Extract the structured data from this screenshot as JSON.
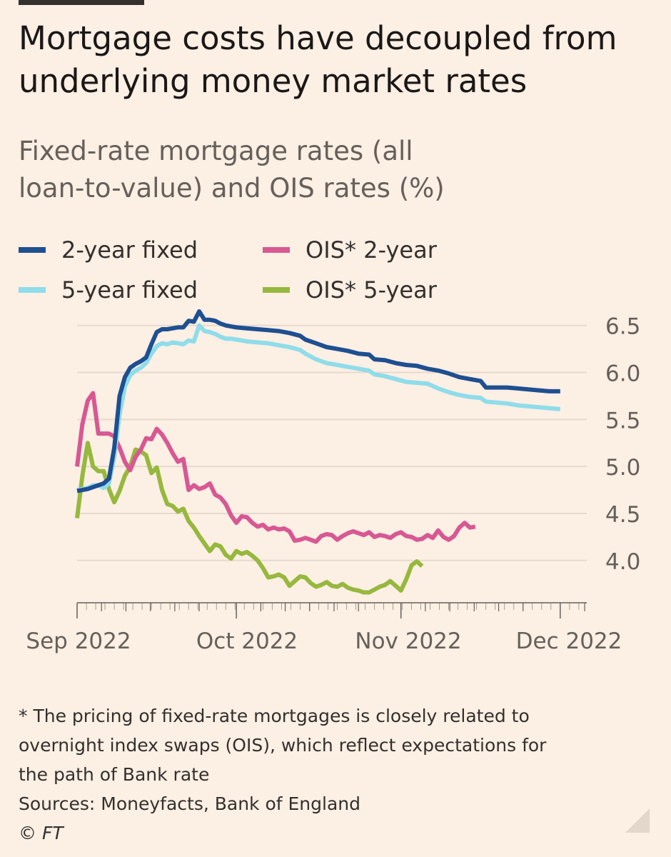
{
  "header": {
    "title_line1": "Mortgage costs have decoupled from",
    "title_line2": "underlying money market rates",
    "subtitle_line1": "Fixed-rate mortgage rates (all",
    "subtitle_line2": "loan-to-value) and OIS rates (%)"
  },
  "footer": {
    "note_line1": "* The pricing of fixed-rate mortgages is closely related to",
    "note_line2": "overnight index swaps (OIS), which reflect expectations for",
    "note_line3": "the path of Bank rate",
    "sources": "Sources: Moneyfacts, Bank of England",
    "credit": "© FT"
  },
  "colors": {
    "background": "#fcefe3",
    "grid": "#e6d9ce",
    "axis": "#66605c"
  },
  "chart_data": {
    "type": "line",
    "title": "Mortgage costs have decoupled from underlying money market rates",
    "subtitle": "Fixed-rate mortgage rates (all loan-to-value) and OIS rates (%)",
    "x_ticks": [
      {
        "label": "Sep 2022",
        "day": 0
      },
      {
        "label": "Oct 2022",
        "day": 30
      },
      {
        "label": "Nov 2022",
        "day": 61
      },
      {
        "label": "Dec 2022",
        "day": 91
      }
    ],
    "x_range": [
      0,
      96
    ],
    "ylim": [
      3.55,
      6.65
    ],
    "y_ticks": [
      4.0,
      4.5,
      5.0,
      5.5,
      6.0,
      6.5
    ],
    "y_tick_labels": [
      "4.0",
      "4.5",
      "5.0",
      "5.5",
      "6.0",
      "6.5"
    ],
    "y_axis_side": "right",
    "grid": true,
    "legend_position": "top-left",
    "series": [
      {
        "name": "2-year fixed",
        "color": "#1e4f91",
        "points": [
          [
            0,
            4.74
          ],
          [
            1,
            4.75
          ],
          [
            2,
            4.76
          ],
          [
            3,
            4.78
          ],
          [
            4,
            4.8
          ],
          [
            5,
            4.82
          ],
          [
            6,
            4.87
          ],
          [
            7,
            5.2
          ],
          [
            8,
            5.75
          ],
          [
            9,
            5.95
          ],
          [
            10,
            6.05
          ],
          [
            11,
            6.09
          ],
          [
            12,
            6.12
          ],
          [
            13,
            6.16
          ],
          [
            14,
            6.3
          ],
          [
            15,
            6.43
          ],
          [
            16,
            6.46
          ],
          [
            17,
            6.46
          ],
          [
            18,
            6.47
          ],
          [
            19,
            6.48
          ],
          [
            20,
            6.48
          ],
          [
            21,
            6.55
          ],
          [
            22,
            6.54
          ],
          [
            23,
            6.65
          ],
          [
            24,
            6.56
          ],
          [
            25,
            6.56
          ],
          [
            26,
            6.55
          ],
          [
            27,
            6.52
          ],
          [
            28,
            6.5
          ],
          [
            29,
            6.49
          ],
          [
            30,
            6.48
          ],
          [
            32,
            6.47
          ],
          [
            34,
            6.46
          ],
          [
            36,
            6.45
          ],
          [
            38,
            6.44
          ],
          [
            40,
            6.42
          ],
          [
            42,
            6.39
          ],
          [
            43,
            6.35
          ],
          [
            45,
            6.31
          ],
          [
            47,
            6.27
          ],
          [
            49,
            6.25
          ],
          [
            51,
            6.23
          ],
          [
            53,
            6.2
          ],
          [
            55,
            6.19
          ],
          [
            56,
            6.14
          ],
          [
            58,
            6.13
          ],
          [
            60,
            6.1
          ],
          [
            62,
            6.08
          ],
          [
            64,
            6.07
          ],
          [
            66,
            6.04
          ],
          [
            68,
            6.02
          ],
          [
            70,
            5.99
          ],
          [
            72,
            5.95
          ],
          [
            74,
            5.93
          ],
          [
            76,
            5.91
          ],
          [
            77,
            5.84
          ],
          [
            79,
            5.84
          ],
          [
            81,
            5.84
          ],
          [
            83,
            5.83
          ],
          [
            85,
            5.82
          ],
          [
            87,
            5.81
          ],
          [
            89,
            5.8
          ],
          [
            91,
            5.8
          ]
        ]
      },
      {
        "name": "5-year fixed",
        "color": "#8fdcea",
        "points": [
          [
            0,
            4.75
          ],
          [
            1,
            4.76
          ],
          [
            2,
            4.77
          ],
          [
            3,
            4.8
          ],
          [
            4,
            4.8
          ],
          [
            5,
            4.77
          ],
          [
            6,
            4.82
          ],
          [
            7,
            5.1
          ],
          [
            8,
            5.55
          ],
          [
            9,
            5.85
          ],
          [
            10,
            5.97
          ],
          [
            11,
            6.02
          ],
          [
            12,
            6.05
          ],
          [
            13,
            6.1
          ],
          [
            14,
            6.2
          ],
          [
            15,
            6.28
          ],
          [
            16,
            6.31
          ],
          [
            17,
            6.3
          ],
          [
            18,
            6.32
          ],
          [
            19,
            6.31
          ],
          [
            20,
            6.3
          ],
          [
            21,
            6.34
          ],
          [
            22,
            6.33
          ],
          [
            23,
            6.5
          ],
          [
            24,
            6.44
          ],
          [
            25,
            6.43
          ],
          [
            26,
            6.41
          ],
          [
            27,
            6.38
          ],
          [
            28,
            6.36
          ],
          [
            29,
            6.36
          ],
          [
            30,
            6.35
          ],
          [
            32,
            6.33
          ],
          [
            34,
            6.32
          ],
          [
            36,
            6.31
          ],
          [
            38,
            6.29
          ],
          [
            40,
            6.27
          ],
          [
            42,
            6.24
          ],
          [
            43,
            6.2
          ],
          [
            45,
            6.14
          ],
          [
            47,
            6.1
          ],
          [
            49,
            6.08
          ],
          [
            51,
            6.06
          ],
          [
            53,
            6.04
          ],
          [
            55,
            6.02
          ],
          [
            56,
            5.98
          ],
          [
            58,
            5.96
          ],
          [
            60,
            5.93
          ],
          [
            62,
            5.9
          ],
          [
            64,
            5.89
          ],
          [
            66,
            5.88
          ],
          [
            68,
            5.83
          ],
          [
            70,
            5.79
          ],
          [
            72,
            5.76
          ],
          [
            74,
            5.74
          ],
          [
            76,
            5.73
          ],
          [
            77,
            5.69
          ],
          [
            79,
            5.68
          ],
          [
            81,
            5.67
          ],
          [
            83,
            5.65
          ],
          [
            85,
            5.64
          ],
          [
            87,
            5.63
          ],
          [
            89,
            5.62
          ],
          [
            91,
            5.61
          ]
        ]
      },
      {
        "name": "OIS* 2-year",
        "color": "#d75893",
        "points": [
          [
            0,
            5.0
          ],
          [
            1,
            5.45
          ],
          [
            2,
            5.7
          ],
          [
            3,
            5.78
          ],
          [
            4,
            5.35
          ],
          [
            5,
            5.35
          ],
          [
            6,
            5.35
          ],
          [
            7,
            5.32
          ],
          [
            8,
            5.2
          ],
          [
            9,
            5.05
          ],
          [
            10,
            4.96
          ],
          [
            11,
            5.1
          ],
          [
            12,
            5.18
          ],
          [
            13,
            5.3
          ],
          [
            14,
            5.29
          ],
          [
            15,
            5.4
          ],
          [
            16,
            5.34
          ],
          [
            17,
            5.25
          ],
          [
            18,
            5.14
          ],
          [
            19,
            5.05
          ],
          [
            20,
            5.08
          ],
          [
            21,
            4.75
          ],
          [
            22,
            4.8
          ],
          [
            23,
            4.76
          ],
          [
            24,
            4.78
          ],
          [
            25,
            4.82
          ],
          [
            26,
            4.7
          ],
          [
            27,
            4.67
          ],
          [
            28,
            4.6
          ],
          [
            29,
            4.48
          ],
          [
            30,
            4.4
          ],
          [
            31,
            4.47
          ],
          [
            32,
            4.46
          ],
          [
            33,
            4.4
          ],
          [
            34,
            4.36
          ],
          [
            35,
            4.38
          ],
          [
            36,
            4.33
          ],
          [
            37,
            4.35
          ],
          [
            38,
            4.33
          ],
          [
            39,
            4.34
          ],
          [
            40,
            4.31
          ],
          [
            41,
            4.21
          ],
          [
            42,
            4.22
          ],
          [
            43,
            4.24
          ],
          [
            44,
            4.22
          ],
          [
            45,
            4.2
          ],
          [
            46,
            4.26
          ],
          [
            47,
            4.28
          ],
          [
            48,
            4.27
          ],
          [
            49,
            4.22
          ],
          [
            50,
            4.26
          ],
          [
            51,
            4.29
          ],
          [
            52,
            4.31
          ],
          [
            53,
            4.29
          ],
          [
            54,
            4.27
          ],
          [
            55,
            4.3
          ],
          [
            56,
            4.25
          ],
          [
            57,
            4.27
          ],
          [
            58,
            4.26
          ],
          [
            59,
            4.24
          ],
          [
            60,
            4.28
          ],
          [
            61,
            4.3
          ],
          [
            62,
            4.26
          ],
          [
            63,
            4.25
          ],
          [
            64,
            4.22
          ],
          [
            65,
            4.23
          ],
          [
            66,
            4.27
          ],
          [
            67,
            4.24
          ],
          [
            68,
            4.32
          ],
          [
            69,
            4.25
          ],
          [
            70,
            4.22
          ],
          [
            71,
            4.26
          ],
          [
            72,
            4.35
          ],
          [
            73,
            4.4
          ],
          [
            74,
            4.35
          ],
          [
            75,
            4.36
          ]
        ]
      },
      {
        "name": "OIS* 5-year",
        "color": "#96b83e",
        "points": [
          [
            0,
            4.45
          ],
          [
            1,
            4.9
          ],
          [
            2,
            5.25
          ],
          [
            3,
            5.0
          ],
          [
            4,
            4.95
          ],
          [
            5,
            4.95
          ],
          [
            6,
            4.76
          ],
          [
            7,
            4.62
          ],
          [
            8,
            4.74
          ],
          [
            9,
            4.9
          ],
          [
            10,
            5.0
          ],
          [
            11,
            5.18
          ],
          [
            12,
            5.16
          ],
          [
            13,
            5.12
          ],
          [
            14,
            4.93
          ],
          [
            15,
            4.99
          ],
          [
            16,
            4.75
          ],
          [
            17,
            4.6
          ],
          [
            18,
            4.58
          ],
          [
            19,
            4.52
          ],
          [
            20,
            4.55
          ],
          [
            21,
            4.42
          ],
          [
            22,
            4.35
          ],
          [
            23,
            4.26
          ],
          [
            24,
            4.18
          ],
          [
            25,
            4.1
          ],
          [
            26,
            4.17
          ],
          [
            27,
            4.15
          ],
          [
            28,
            4.06
          ],
          [
            29,
            4.02
          ],
          [
            30,
            4.1
          ],
          [
            31,
            4.07
          ],
          [
            32,
            4.09
          ],
          [
            33,
            4.05
          ],
          [
            34,
            4.0
          ],
          [
            35,
            3.92
          ],
          [
            36,
            3.82
          ],
          [
            37,
            3.83
          ],
          [
            38,
            3.85
          ],
          [
            39,
            3.82
          ],
          [
            40,
            3.73
          ],
          [
            41,
            3.78
          ],
          [
            42,
            3.83
          ],
          [
            43,
            3.82
          ],
          [
            44,
            3.76
          ],
          [
            45,
            3.72
          ],
          [
            46,
            3.74
          ],
          [
            47,
            3.77
          ],
          [
            48,
            3.73
          ],
          [
            49,
            3.72
          ],
          [
            50,
            3.75
          ],
          [
            51,
            3.71
          ],
          [
            52,
            3.69
          ],
          [
            53,
            3.68
          ],
          [
            54,
            3.66
          ],
          [
            55,
            3.66
          ],
          [
            56,
            3.69
          ],
          [
            57,
            3.72
          ],
          [
            58,
            3.74
          ],
          [
            59,
            3.78
          ],
          [
            60,
            3.73
          ],
          [
            61,
            3.68
          ],
          [
            62,
            3.8
          ],
          [
            63,
            3.95
          ],
          [
            64,
            3.99
          ],
          [
            65,
            3.94
          ]
        ]
      }
    ]
  }
}
